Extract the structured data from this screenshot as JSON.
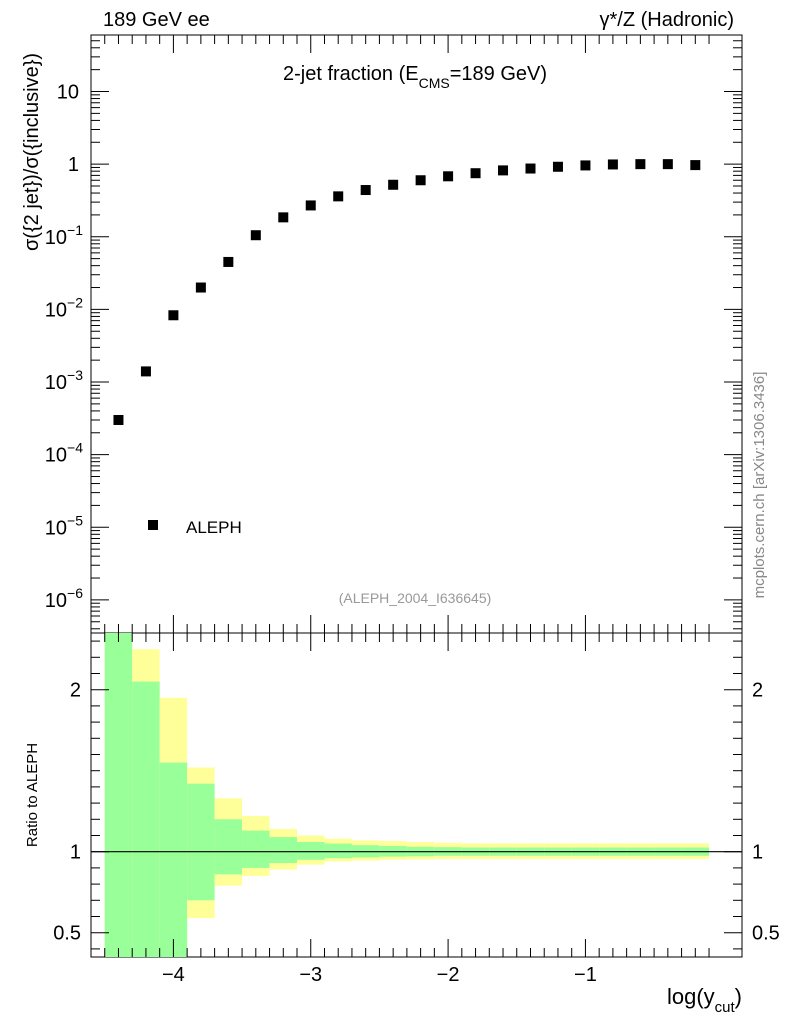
{
  "header": {
    "left": "189 GeV ee",
    "right": "γ*/Z (Hadronic)"
  },
  "watermark": "mcplots.cern.ch [arXiv:1306.3436]",
  "chart_data": {
    "type": "scatter",
    "title": {
      "main": "2-jet fraction (E",
      "sub": "CMS",
      "rest": "=189 GeV)"
    },
    "ylabel": "σ({2 jet})/σ({inclusive})",
    "xlabel": {
      "main": "log(y",
      "sub": "cut",
      "close": ")"
    },
    "analysis": "(ALEPH_2004_I636645)",
    "legend": {
      "label": "ALEPH",
      "position": "lower-left"
    },
    "yscale": "log",
    "xlim": [
      -4.6,
      0.14
    ],
    "ylim": [
      3.5e-07,
      60
    ],
    "yticks": [
      {
        "value": 1e-06,
        "base": "10",
        "exp": "−6"
      },
      {
        "value": 1e-05,
        "base": "10",
        "exp": "−5"
      },
      {
        "value": 0.0001,
        "base": "10",
        "exp": "−4"
      },
      {
        "value": 0.001,
        "base": "10",
        "exp": "−3"
      },
      {
        "value": 0.01,
        "base": "10",
        "exp": "−2"
      },
      {
        "value": 0.1,
        "base": "10",
        "exp": "−1"
      },
      {
        "value": 1,
        "base": "1",
        "exp": ""
      },
      {
        "value": 10,
        "base": "10",
        "exp": ""
      }
    ],
    "xticks": [
      {
        "value": -4,
        "label": "−4"
      },
      {
        "value": -3,
        "label": "−3"
      },
      {
        "value": -2,
        "label": "−2"
      },
      {
        "value": -1,
        "label": "−1"
      }
    ],
    "series": [
      {
        "name": "ALEPH",
        "x": [
          -4.4,
          -4.2,
          -4.0,
          -3.8,
          -3.6,
          -3.4,
          -3.2,
          -3.0,
          -2.8,
          -2.6,
          -2.4,
          -2.2,
          -2.0,
          -1.8,
          -1.6,
          -1.4,
          -1.2,
          -1.0,
          -0.8,
          -0.6,
          -0.4,
          -0.2
        ],
        "y": [
          0.0003,
          0.0014,
          0.0083,
          0.02,
          0.045,
          0.105,
          0.185,
          0.27,
          0.36,
          0.44,
          0.52,
          0.6,
          0.68,
          0.75,
          0.82,
          0.87,
          0.92,
          0.96,
          0.99,
          1.0,
          1.0,
          0.97
        ]
      }
    ],
    "ratio": {
      "ylabel": "Ratio to ALEPH",
      "ylim": [
        0.35,
        2.35
      ],
      "yticks": [
        {
          "value": 0.5,
          "label": "0.5"
        },
        {
          "value": 1,
          "label": "1"
        },
        {
          "value": 2,
          "label": "2"
        }
      ],
      "bins": [
        {
          "lo": -4.5,
          "hi": -4.3,
          "green": [
            0,
            3.0
          ],
          "yellow": [
            0,
            3.0
          ]
        },
        {
          "lo": -4.3,
          "hi": -4.1,
          "green": [
            0.3,
            2.05
          ],
          "yellow": [
            0.3,
            2.25
          ]
        },
        {
          "lo": -4.1,
          "hi": -3.9,
          "green": [
            0.3,
            1.55
          ],
          "yellow": [
            0.3,
            1.95
          ]
        },
        {
          "lo": -3.9,
          "hi": -3.7,
          "green": [
            0.7,
            1.42
          ],
          "yellow": [
            0.59,
            1.52
          ]
        },
        {
          "lo": -3.7,
          "hi": -3.5,
          "green": [
            0.86,
            1.2
          ],
          "yellow": [
            0.79,
            1.33
          ]
        },
        {
          "lo": -3.5,
          "hi": -3.3,
          "green": [
            0.9,
            1.13
          ],
          "yellow": [
            0.85,
            1.22
          ]
        },
        {
          "lo": -3.3,
          "hi": -3.1,
          "green": [
            0.93,
            1.09
          ],
          "yellow": [
            0.89,
            1.14
          ]
        },
        {
          "lo": -3.1,
          "hi": -2.9,
          "green": [
            0.95,
            1.06
          ],
          "yellow": [
            0.92,
            1.1
          ]
        },
        {
          "lo": -2.9,
          "hi": -2.7,
          "green": [
            0.96,
            1.05
          ],
          "yellow": [
            0.94,
            1.08
          ]
        },
        {
          "lo": -2.7,
          "hi": -2.5,
          "green": [
            0.965,
            1.04
          ],
          "yellow": [
            0.945,
            1.07
          ]
        },
        {
          "lo": -2.5,
          "hi": -2.3,
          "green": [
            0.97,
            1.035
          ],
          "yellow": [
            0.95,
            1.065
          ]
        },
        {
          "lo": -2.3,
          "hi": -2.1,
          "green": [
            0.972,
            1.03
          ],
          "yellow": [
            0.952,
            1.06
          ]
        },
        {
          "lo": -2.1,
          "hi": -1.9,
          "green": [
            0.975,
            1.028
          ],
          "yellow": [
            0.955,
            1.055
          ]
        },
        {
          "lo": -1.9,
          "hi": -1.7,
          "green": [
            0.975,
            1.026
          ],
          "yellow": [
            0.955,
            1.052
          ]
        },
        {
          "lo": -1.7,
          "hi": -1.5,
          "green": [
            0.975,
            1.026
          ],
          "yellow": [
            0.955,
            1.052
          ]
        },
        {
          "lo": -1.5,
          "hi": -1.3,
          "green": [
            0.975,
            1.026
          ],
          "yellow": [
            0.955,
            1.052
          ]
        },
        {
          "lo": -1.3,
          "hi": -1.1,
          "green": [
            0.975,
            1.026
          ],
          "yellow": [
            0.955,
            1.052
          ]
        },
        {
          "lo": -1.1,
          "hi": -0.9,
          "green": [
            0.975,
            1.026
          ],
          "yellow": [
            0.955,
            1.052
          ]
        },
        {
          "lo": -0.9,
          "hi": -0.7,
          "green": [
            0.975,
            1.026
          ],
          "yellow": [
            0.955,
            1.052
          ]
        },
        {
          "lo": -0.7,
          "hi": -0.5,
          "green": [
            0.975,
            1.026
          ],
          "yellow": [
            0.955,
            1.052
          ]
        },
        {
          "lo": -0.5,
          "hi": -0.3,
          "green": [
            0.975,
            1.026
          ],
          "yellow": [
            0.955,
            1.052
          ]
        },
        {
          "lo": -0.3,
          "hi": -0.1,
          "green": [
            0.975,
            1.026
          ],
          "yellow": [
            0.955,
            1.052
          ]
        }
      ],
      "colors": {
        "green": "#99ff99",
        "yellow": "#ffff99",
        "line": "#000000"
      }
    }
  }
}
